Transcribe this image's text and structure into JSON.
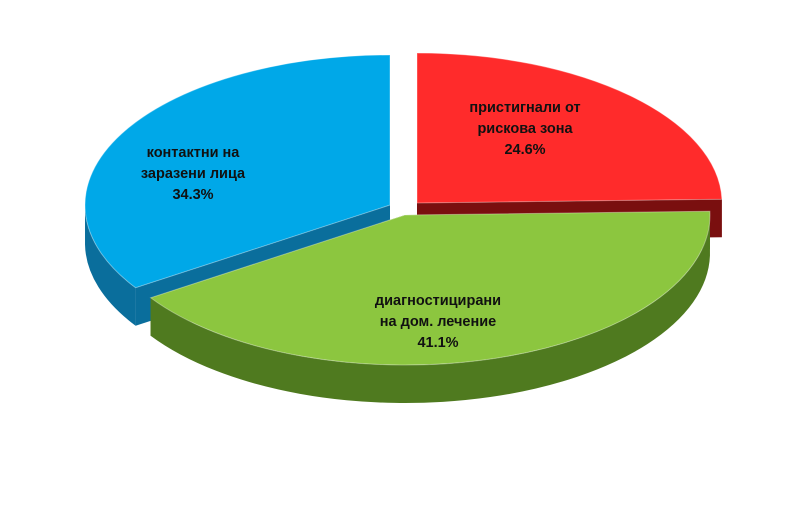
{
  "chart_data": {
    "type": "pie",
    "style": "3d-exploded",
    "slices": [
      {
        "label_lines": [
          "пристигнали  от",
          "рискова  зона"
        ],
        "value": 24.6,
        "value_label": "24.6%",
        "color": "#ff2b2b",
        "side_color": "#7a0f0f"
      },
      {
        "label_lines": [
          "диагностицирани",
          "на дом. лечение"
        ],
        "value": 41.1,
        "value_label": "41.1%",
        "color": "#8cc63f",
        "side_color": "#4f7a1f"
      },
      {
        "label_lines": [
          "контактни  на",
          "заразени лица"
        ],
        "value": 34.3,
        "value_label": "34.3%",
        "color": "#00a8e8",
        "side_color": "#0a6e9c"
      }
    ],
    "legend": "none",
    "title": ""
  }
}
